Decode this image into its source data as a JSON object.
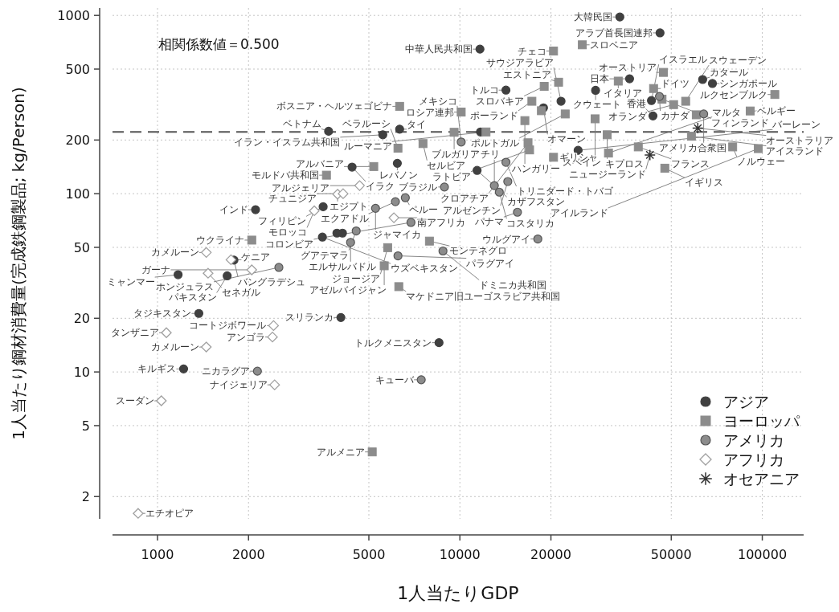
{
  "chart_data": {
    "type": "scatter",
    "xlabel": "1人当たりGDP",
    "ylabel": "1人当たり鋼材消費量(完成鉄鋼製品; kg/Person)",
    "log": "xy",
    "xlim": [
      710,
      137000
    ],
    "ylim": [
      1.5,
      1100
    ],
    "xticks": [
      1000,
      2000,
      5000,
      10000,
      20000,
      50000,
      100000
    ],
    "yticks": [
      2,
      5,
      10,
      20,
      50,
      100,
      200,
      500,
      1000
    ],
    "grid": true,
    "legend": "bottom right",
    "ref_lines": [
      {
        "axis": "y",
        "value": 222,
        "line_style": "dashed",
        "color": "#555555"
      }
    ],
    "series": [
      {
        "name": "アジア",
        "color": "#404040",
        "marker": "circle",
        "x": [
          33800,
          45900,
          11650,
          14200,
          28100,
          36400,
          63500,
          68400,
          21600,
          18900,
          43000,
          43500,
          24600,
          11400,
          3680,
          5560,
          6320,
          11700,
          4400,
          6210,
          2110,
          3530,
          3510,
          3920,
          4090,
          1790,
          1700,
          1170,
          1370,
          4040,
          1220,
          8530
        ],
        "values": [
          980,
          798,
          647,
          381,
          380,
          441,
          437,
          415,
          330,
          303,
          333,
          273,
          175,
          135,
          224,
          214,
          230,
          222,
          141,
          148,
          81.3,
          84.5,
          57.1,
          60.1,
          60.1,
          42.4,
          34.6,
          35.1,
          21.3,
          20.2,
          10.4,
          14.6
        ]
      },
      {
        "name": "ヨーロッパ",
        "color": "#8c8c8c",
        "marker": "square",
        "x": [
          25400,
          20400,
          47100,
          21200,
          19000,
          33400,
          43700,
          46600,
          50900,
          55800,
          110000,
          17300,
          91200,
          18600,
          16400,
          22300,
          28000,
          10100,
          6320,
          9570,
          12200,
          6240,
          7550,
          16800,
          17000,
          30700,
          31000,
          20400,
          38900,
          47600,
          58300,
          79800,
          97000,
          3620,
          5190,
          2050,
          7930,
          5770,
          5620,
          6280,
          5130,
          60500
        ],
        "values": [
          684,
          631,
          479,
          422,
          400,
          428,
          389,
          339,
          316,
          330,
          360,
          330,
          291,
          292,
          257,
          280,
          263,
          287,
          309,
          221,
          222,
          180,
          191,
          193,
          176,
          214,
          169,
          160,
          183,
          139,
          210,
          183,
          179,
          127,
          142,
          54.9,
          54.2,
          49.8,
          39.4,
          30.1,
          3.56,
          277
        ]
      },
      {
        "name": "アメリカ",
        "color": "#8c8c8c",
        "marker": "circle",
        "x": [
          45700,
          64000,
          10100,
          14200,
          14400,
          13000,
          13500,
          15500,
          18100,
          8890,
          6600,
          6120,
          5260,
          6890,
          4540,
          4350,
          6240,
          8790,
          2520,
          2140,
          7450
        ],
        "values": [
          351,
          280,
          195,
          150,
          117,
          111,
          102,
          78.7,
          55.7,
          109,
          94.9,
          90.2,
          82.8,
          69.0,
          61.8,
          53.3,
          44.8,
          47.7,
          38.6,
          10.1,
          9.04
        ]
      },
      {
        "name": "アフリカ",
        "color": "#a0a0a0",
        "marker": "diamond",
        "x": [
          4660,
          3940,
          4110,
          3300,
          6050,
          1450,
          1750,
          1470,
          2050,
          2420,
          2400,
          1070,
          1450,
          2440,
          1030,
          863
        ],
        "values": [
          111,
          99.3,
          100,
          80.2,
          73.3,
          46.8,
          42.6,
          35.8,
          37.4,
          18.2,
          15.7,
          16.6,
          13.8,
          8.47,
          6.89,
          1.61
        ]
      },
      {
        "name": "オセアニア",
        "color": "#333333",
        "marker": "cross",
        "x": [
          61200,
          42500
        ],
        "values": [
          233,
          165
        ]
      }
    ],
    "annotations": [
      "相関係数値＝0.500",
      {
        "text": "大韓民国",
        "x": 33800,
        "y": 980
      },
      {
        "text": "アラブ首長国連邦",
        "x": 45900,
        "y": 798
      },
      {
        "text": "中華人民共和国",
        "x": 11650,
        "y": 647
      },
      {
        "text": "トルコ",
        "x": 14200,
        "y": 381
      },
      {
        "text": "クウェート",
        "x": 28100,
        "y": 380
      },
      {
        "text": "日本",
        "x": 36400,
        "y": 441
      },
      {
        "text": "カタール",
        "x": 63500,
        "y": 437
      },
      {
        "text": "シンガポール",
        "x": 68400,
        "y": 415
      },
      {
        "text": "サウジアラビア",
        "x": 21600,
        "y": 330
      },
      {
        "text": "オマーン",
        "x": 18900,
        "y": 303
      },
      {
        "text": "イスラエル",
        "x": 43000,
        "y": 333
      },
      {
        "text": "香港",
        "x": 43500,
        "y": 273
      },
      {
        "text": "バーレーン",
        "x": 24600,
        "y": 175
      },
      {
        "text": "カザフスタン",
        "x": 11400,
        "y": 135
      },
      {
        "text": "ベトナム",
        "x": 3680,
        "y": 224
      },
      {
        "text": "イラン・イスラム共和国",
        "x": 5560,
        "y": 214
      },
      {
        "text": "タイ",
        "x": 6320,
        "y": 230
      },
      {
        "text": "イラク",
        "x": 4400,
        "y": 141
      },
      {
        "text": "レバノン",
        "x": 6210,
        "y": 148
      },
      {
        "text": "インド",
        "x": 2110,
        "y": 81.3
      },
      {
        "text": "フィリピン",
        "x": 3530,
        "y": 84.5
      },
      {
        "text": "ウズベキスタン",
        "x": 3510,
        "y": 57.1
      },
      {
        "text": "バングラデシュ",
        "x": 1790,
        "y": 42.4
      },
      {
        "text": "パキスタン",
        "x": 1700,
        "y": 34.6
      },
      {
        "text": "ミャンマー",
        "x": 1170,
        "y": 35.1
      },
      {
        "text": "タジキスタン",
        "x": 1370,
        "y": 21.3
      },
      {
        "text": "スリランカ",
        "x": 4040,
        "y": 20.2
      },
      {
        "text": "キルギス",
        "x": 1220,
        "y": 10.4
      },
      {
        "text": "トルクメニスタン",
        "x": 8530,
        "y": 14.6
      },
      {
        "text": "スロベニア",
        "x": 25400,
        "y": 684
      },
      {
        "text": "チェコ",
        "x": 20400,
        "y": 631
      },
      {
        "text": "オーストリア",
        "x": 47100,
        "y": 479
      },
      {
        "text": "エストニア",
        "x": 21200,
        "y": 422
      },
      {
        "text": "スロバキア",
        "x": 19000,
        "y": 400
      },
      {
        "text": "イタリア",
        "x": 33400,
        "y": 428
      },
      {
        "text": "ドイツ",
        "x": 43700,
        "y": 389
      },
      {
        "text": "フィンランド",
        "x": 46600,
        "y": 339
      },
      {
        "text": "オランダ",
        "x": 50900,
        "y": 316
      },
      {
        "text": "スウェーデン",
        "x": 55800,
        "y": 330
      },
      {
        "text": "ルクセンブルク",
        "x": 110000,
        "y": 360
      },
      {
        "text": "ポーランド",
        "x": 17300,
        "y": 330
      },
      {
        "text": "ベルギー",
        "x": 91200,
        "y": 291
      },
      {
        "text": "ハンガリー",
        "x": 16400,
        "y": 257
      },
      {
        "text": "ポルトガル",
        "x": 22300,
        "y": 280
      },
      {
        "text": "スペイン",
        "x": 28000,
        "y": 263
      },
      {
        "text": "ロシア連邦",
        "x": 10100,
        "y": 287
      },
      {
        "text": "ボスニア・ヘルツェゴビナ",
        "x": 6320,
        "y": 309
      },
      {
        "text": "ブルガリア",
        "x": 9570,
        "y": 221
      },
      {
        "text": "ルーマニア",
        "x": 12200,
        "y": 222
      },
      {
        "text": "ベラルーシ",
        "x": 6240,
        "y": 180
      },
      {
        "text": "セルビア",
        "x": 7550,
        "y": 191
      },
      {
        "text": "クロアチア",
        "x": 16800,
        "y": 193
      },
      {
        "text": "ラトビア",
        "x": 17000,
        "y": 176
      },
      {
        "text": "キプロス",
        "x": 30700,
        "y": 214
      },
      {
        "text": "マルタ",
        "x": 31000,
        "y": 169
      },
      {
        "text": "ギリシャ",
        "x": 20400,
        "y": 160
      },
      {
        "text": "フランス",
        "x": 38900,
        "y": 183
      },
      {
        "text": "イギリス",
        "x": 47600,
        "y": 139
      },
      {
        "text": "アイスランド",
        "x": 58300,
        "y": 210
      },
      {
        "text": "ノルウェー",
        "x": 79800,
        "y": 183
      },
      {
        "text": "アイルランド",
        "x": 97000,
        "y": 179
      },
      {
        "text": "モルドバ共和国",
        "x": 3620,
        "y": 127
      },
      {
        "text": "アルバニア",
        "x": 5190,
        "y": 142
      },
      {
        "text": "ウクライナ",
        "x": 2050,
        "y": 54.9
      },
      {
        "text": "モンテネグロ",
        "x": 7930,
        "y": 54.2
      },
      {
        "text": "ジョージア",
        "x": 5770,
        "y": 49.8
      },
      {
        "text": "アゼルバイジャン",
        "x": 5620,
        "y": 39.4
      },
      {
        "text": "マケドニア旧ユーゴスラビア共和国",
        "x": 6280,
        "y": 30.1
      },
      {
        "text": "アルメニア",
        "x": 5130,
        "y": 3.56
      },
      {
        "text": "カナダ",
        "x": 45700,
        "y": 351
      },
      {
        "text": "アメリカ合衆国",
        "x": 64000,
        "y": 280
      },
      {
        "text": "メキシコ",
        "x": 10100,
        "y": 195
      },
      {
        "text": "トリニダード・トバゴ",
        "x": 14200,
        "y": 150
      },
      {
        "text": "アルゼンチン",
        "x": 14400,
        "y": 117
      },
      {
        "text": "チリ",
        "x": 13000,
        "y": 111
      },
      {
        "text": "コスタリカ",
        "x": 13500,
        "y": 102
      },
      {
        "text": "パナマ",
        "x": 15500,
        "y": 78.7
      },
      {
        "text": "ウルグアイ",
        "x": 18100,
        "y": 55.7
      },
      {
        "text": "ブラジル",
        "x": 8890,
        "y": 109
      },
      {
        "text": "ペルー",
        "x": 6600,
        "y": 94.9
      },
      {
        "text": "エクアドル",
        "x": 6120,
        "y": 90.2
      },
      {
        "text": "ジャマイカ",
        "x": 5260,
        "y": 82.8
      },
      {
        "text": "コロンビア",
        "x": 6890,
        "y": 69.0
      },
      {
        "text": "グアテマラ",
        "x": 4540,
        "y": 61.8
      },
      {
        "text": "エルサルバドル",
        "x": 4350,
        "y": 53.3
      },
      {
        "text": "パラグアイ",
        "x": 6240,
        "y": 44.8
      },
      {
        "text": "ドミニカ共和国",
        "x": 8790,
        "y": 47.7
      },
      {
        "text": "ホンジュラス",
        "x": 2520,
        "y": 38.6
      },
      {
        "text": "ニカラグア",
        "x": 2140,
        "y": 10.1
      },
      {
        "text": "キューバ",
        "x": 7450,
        "y": 9.04
      },
      {
        "text": "アルジェリア",
        "x": 4660,
        "y": 111
      },
      {
        "text": "エジプト",
        "x": 3940,
        "y": 99.3
      },
      {
        "text": "チュニジア",
        "x": 4110,
        "y": 100
      },
      {
        "text": "モロッコ",
        "x": 3300,
        "y": 80.2
      },
      {
        "text": "南アフリカ",
        "x": 6050,
        "y": 73.3
      },
      {
        "text": "カメルーン",
        "x": 1450,
        "y": 46.8
      },
      {
        "text": "ケニア",
        "x": 1750,
        "y": 42.6
      },
      {
        "text": "セネガル",
        "x": 1470,
        "y": 35.8
      },
      {
        "text": "ガーナ",
        "x": 2050,
        "y": 37.4
      },
      {
        "text": "コートジボワール",
        "x": 2420,
        "y": 18.2
      },
      {
        "text": "アンゴラ",
        "x": 2400,
        "y": 15.7
      },
      {
        "text": "タンザニア",
        "x": 1070,
        "y": 16.6
      },
      {
        "text": "カメルーン",
        "x": 1450,
        "y": 13.8
      },
      {
        "text": "ナイジェリア",
        "x": 2440,
        "y": 8.47
      },
      {
        "text": "スーダン",
        "x": 1030,
        "y": 6.89
      },
      {
        "text": "エチオピア",
        "x": 863,
        "y": 1.61
      },
      {
        "text": "オーストラリア",
        "x": 61200,
        "y": 233
      },
      {
        "text": "ニュージーランド",
        "x": 42500,
        "y": 165
      }
    ]
  }
}
